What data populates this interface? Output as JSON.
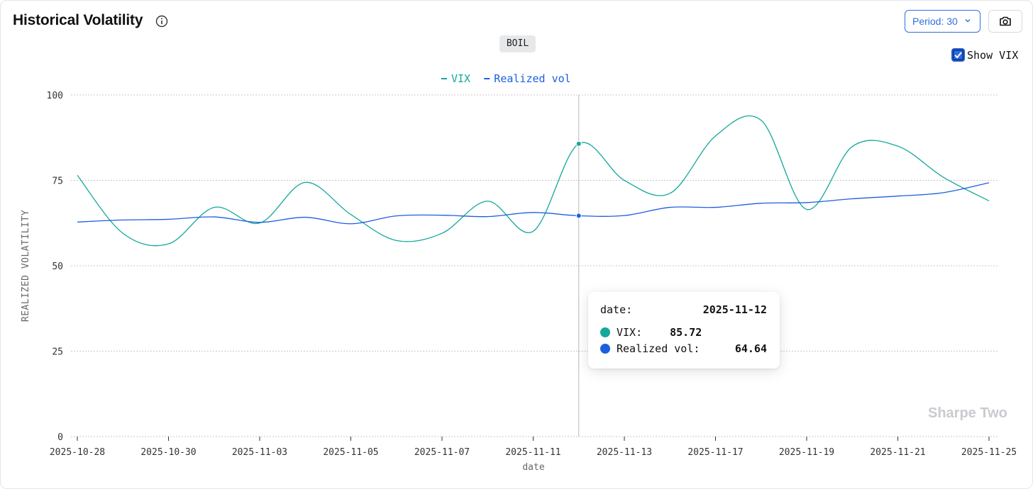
{
  "header": {
    "title": "Historical Volatility",
    "ticker": "BOIL",
    "period_label": "Period: 30",
    "show_vix_label": "Show VIX",
    "show_vix_checked": true
  },
  "watermark": "Sharpe Two",
  "tooltip": {
    "date_label": "date:",
    "date_value": "2025-11-12",
    "items": [
      {
        "label": "VIX:",
        "value": "85.72",
        "color": "#14a89a"
      },
      {
        "label": "Realized vol:",
        "value": "64.64",
        "color": "#1d5fe0"
      }
    ]
  },
  "colors": {
    "vix": "#14a89a",
    "realized": "#1d5fe0",
    "accent": "#2f6fe0"
  },
  "icons": [
    "info-icon",
    "chevron-down-icon",
    "camera-icon",
    "checkmark-icon"
  ],
  "chart_data": {
    "type": "line",
    "xlabel": "date",
    "ylabel": "REALIZED VOLATILITY",
    "ylim": [
      0,
      100
    ],
    "yticks": [
      0,
      25,
      50,
      75,
      100
    ],
    "grid": true,
    "legend_position": "top-center",
    "x": [
      "2025-10-28",
      "2025-10-29",
      "2025-10-30",
      "2025-10-31",
      "2025-11-03",
      "2025-11-04",
      "2025-11-05",
      "2025-11-06",
      "2025-11-07",
      "2025-11-10",
      "2025-11-11",
      "2025-11-12",
      "2025-11-13",
      "2025-11-14",
      "2025-11-17",
      "2025-11-18",
      "2025-11-19",
      "2025-11-20",
      "2025-11-21",
      "2025-11-24",
      "2025-11-25"
    ],
    "xticks": [
      "2025-10-28",
      "2025-10-30",
      "2025-11-03",
      "2025-11-05",
      "2025-11-07",
      "2025-11-11",
      "2025-11-13",
      "2025-11-17",
      "2025-11-19",
      "2025-11-21",
      "2025-11-25"
    ],
    "series": [
      {
        "name": "VIX",
        "color": "#14a89a",
        "values": [
          76.5,
          59.5,
          56.4,
          67.1,
          62.5,
          74.4,
          65.0,
          57.4,
          59.5,
          68.9,
          60.1,
          85.72,
          75.0,
          71.2,
          88.0,
          92.6,
          66.5,
          84.9,
          85.0,
          75.9,
          69.0
        ]
      },
      {
        "name": "Realized vol",
        "color": "#1d5fe0",
        "values": [
          62.8,
          63.4,
          63.6,
          64.3,
          62.7,
          64.2,
          62.3,
          64.6,
          64.8,
          64.4,
          65.6,
          64.64,
          64.7,
          67.1,
          67.1,
          68.3,
          68.5,
          69.6,
          70.4,
          71.4,
          74.3
        ]
      }
    ],
    "hover": {
      "x": "2025-11-12"
    }
  }
}
